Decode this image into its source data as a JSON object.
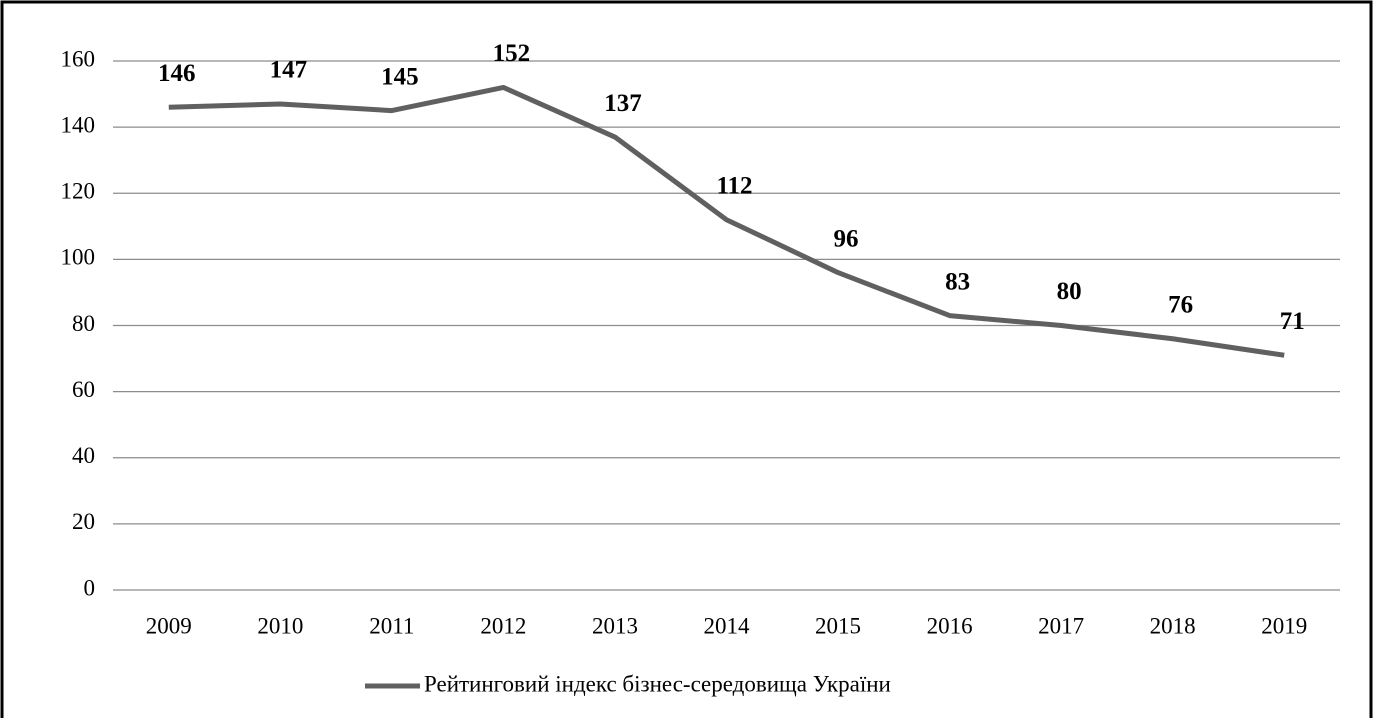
{
  "chart_data": {
    "type": "line",
    "categories": [
      "2009",
      "2010",
      "2011",
      "2012",
      "2013",
      "2014",
      "2015",
      "2016",
      "2017",
      "2018",
      "2019"
    ],
    "series": [
      {
        "name": "Рейтинговий індекс бізнес-середовища України",
        "color": "#606060",
        "values": [
          146,
          147,
          145,
          152,
          137,
          112,
          96,
          83,
          80,
          76,
          71
        ]
      }
    ],
    "ylim": [
      0,
      160
    ],
    "yticks": [
      0,
      20,
      40,
      60,
      80,
      100,
      120,
      140,
      160
    ],
    "grid": true,
    "data_labels": true,
    "legend": "bottom"
  }
}
